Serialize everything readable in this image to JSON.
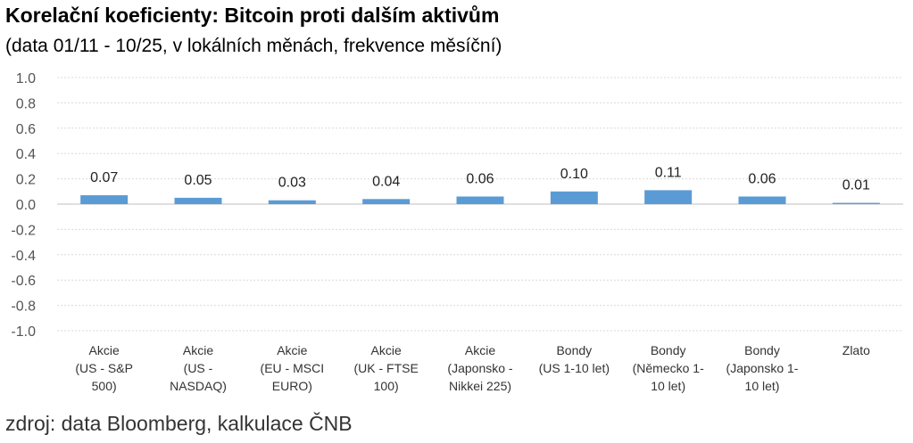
{
  "chart_data": {
    "type": "bar",
    "title": "Korelační koeficienty: Bitcoin proti dalším aktivům",
    "subtitle": "(data 01/11 - 10/25, v lokálních měnách, frekvence měsíční)",
    "source": "zdroj: data Bloomberg, kalkulace ČNB",
    "ylim": [
      -1.0,
      1.0
    ],
    "yticks": [
      1.0,
      0.8,
      0.6,
      0.4,
      0.2,
      0.0,
      -0.2,
      -0.4,
      -0.6,
      -0.8,
      -1.0
    ],
    "ytick_labels": [
      "1.0",
      "0.8",
      "0.6",
      "0.4",
      "0.2",
      "0.0",
      "-0.2",
      "-0.4",
      "-0.6",
      "-0.8",
      "-1.0"
    ],
    "grid": true,
    "bar_color": "#5b9bd5",
    "categories": [
      [
        "Akcie",
        "(US - S&P",
        "500)"
      ],
      [
        "Akcie",
        "(US -",
        "NASDAQ)"
      ],
      [
        "Akcie",
        "(EU - MSCI",
        "EURO)"
      ],
      [
        "Akcie",
        "(UK - FTSE",
        "100)"
      ],
      [
        "Akcie",
        "(Japonsko -",
        "Nikkei 225)"
      ],
      [
        "Bondy",
        "(US 1-10 let)"
      ],
      [
        "Bondy",
        "(Německo 1-",
        "10 let)"
      ],
      [
        "Bondy",
        "(Japonsko 1-",
        "10 let)"
      ],
      [
        "Zlato"
      ]
    ],
    "values": [
      0.07,
      0.05,
      0.03,
      0.04,
      0.06,
      0.1,
      0.11,
      0.06,
      0.01
    ],
    "value_labels": [
      "0.07",
      "0.05",
      "0.03",
      "0.04",
      "0.06",
      "0.10",
      "0.11",
      "0.06",
      "0.01"
    ]
  }
}
